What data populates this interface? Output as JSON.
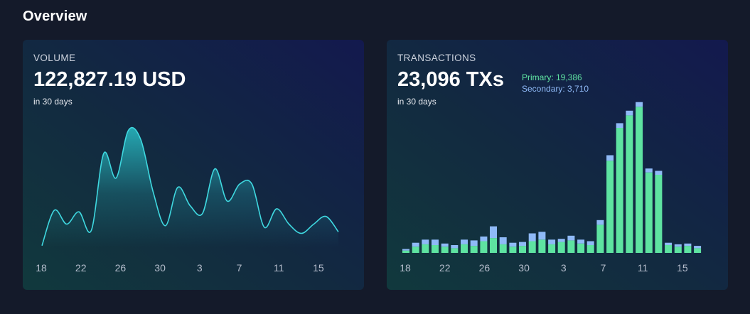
{
  "page": {
    "title": "Overview"
  },
  "volume_card": {
    "label": "VOLUME",
    "value": "122,827.19 USD",
    "sub": "in 30 days"
  },
  "transactions_card": {
    "label": "TRANSACTIONS",
    "value": "23,096 TXs",
    "sub": "in 30 days",
    "primary_label": "Primary: 19,386",
    "secondary_label": "Secondary: 3,710"
  },
  "colors": {
    "line": "#3fd8e0",
    "area_top": "#27b6be",
    "primary": "#5ee3a1",
    "secondary": "#8fbaf7"
  },
  "chart_data": [
    {
      "type": "area",
      "x_tick_labels": [
        "18",
        "22",
        "26",
        "30",
        "3",
        "7",
        "11",
        "15"
      ],
      "values": [
        2,
        48,
        30,
        46,
        22,
        122,
        90,
        152,
        140,
        72,
        28,
        78,
        54,
        44,
        102,
        60,
        82,
        82,
        26,
        50,
        30,
        18,
        30,
        40,
        20
      ],
      "ylim": [
        0,
        170
      ],
      "grid": false
    },
    {
      "type": "bar",
      "x_tick_labels": [
        "18",
        "22",
        "26",
        "30",
        "3",
        "7",
        "11",
        "15"
      ],
      "series": [
        {
          "values": [
            3,
            8,
            11,
            10,
            8,
            6,
            11,
            9,
            15,
            19,
            11,
            8,
            9,
            15,
            17,
            11,
            14,
            16,
            12,
            10,
            36,
            118,
            160,
            176,
            187,
            103,
            100,
            10,
            8,
            9,
            6
          ]
        },
        {
          "values": [
            2,
            5,
            6,
            7,
            4,
            4,
            6,
            7,
            6,
            15,
            9,
            5,
            5,
            10,
            10,
            6,
            4,
            6,
            5,
            5,
            6,
            7,
            6,
            6,
            6,
            5,
            5,
            3,
            3,
            3,
            3
          ]
        }
      ],
      "ylim": [
        0,
        200
      ],
      "grid": false
    }
  ]
}
